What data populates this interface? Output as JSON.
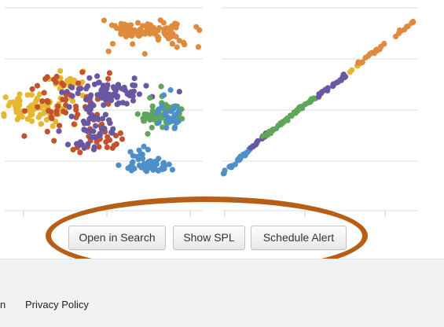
{
  "actions": {
    "open_in_search": "Open in Search",
    "show_spl": "Show SPL",
    "schedule_alert": "Schedule Alert"
  },
  "footer": {
    "partial_link": "n",
    "privacy_policy": "Privacy Policy"
  },
  "colors": {
    "series_orange": "#e08a3e",
    "series_yellow": "#e6b730",
    "series_red": "#c3522d",
    "series_purple": "#6a57a1",
    "series_green": "#5fa55a",
    "series_blue": "#4e8fc9",
    "annotation_ring": "#b75e17",
    "gridline": "#dddddd"
  }
}
